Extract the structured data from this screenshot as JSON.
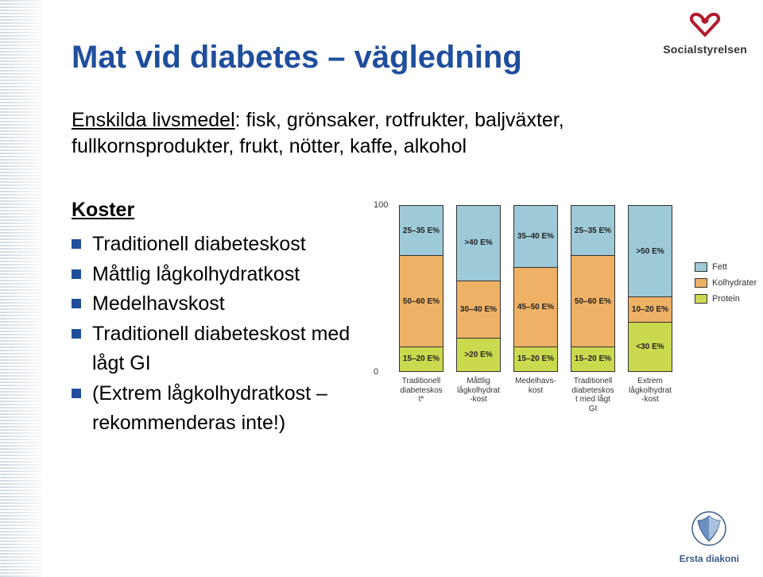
{
  "title": "Mat vid diabetes – vägledning",
  "intro": {
    "label": "Enskilda livsmedel",
    "text": ": fisk, grönsaker, rotfrukter, baljväxter, fullkornsprodukter, frukt, nötter, kaffe, alkohol"
  },
  "koster": {
    "heading": "Koster",
    "items": [
      "Traditionell diabeteskost",
      "Måttlig lågkolhydratkost",
      "Medelhavskost",
      "Traditionell diabeteskost med lågt GI",
      "(Extrem lågkolhydratkost – rekommenderas inte!)"
    ]
  },
  "logos": {
    "social": "Socialstyrelsen",
    "ersta": "Ersta diakoni"
  },
  "chart": {
    "ymax_label": "100",
    "ymin_label": "0",
    "colors": {
      "fat": "#9ec9d6",
      "carb": "#eeb165",
      "protein": "#cbd94f",
      "border": "#333333",
      "background": "#ffffff"
    },
    "legend": [
      {
        "key": "fat",
        "label": "Fett"
      },
      {
        "key": "carb",
        "label": "Kolhydrater"
      },
      {
        "key": "protein",
        "label": "Protein"
      }
    ],
    "bars": [
      {
        "label": "Traditionell diabeteskost*",
        "segments": [
          {
            "key": "fat",
            "pct": 30,
            "text": "25–35 E%"
          },
          {
            "key": "carb",
            "pct": 55,
            "text": "50–60 E%"
          },
          {
            "key": "protein",
            "pct": 15,
            "text": "15–20 E%"
          }
        ]
      },
      {
        "label": "Måttlig lågkolhydrat-kost",
        "segments": [
          {
            "key": "fat",
            "pct": 45,
            "text": ">40 E%"
          },
          {
            "key": "carb",
            "pct": 35,
            "text": "30–40 E%"
          },
          {
            "key": "protein",
            "pct": 20,
            "text": ">20 E%"
          }
        ]
      },
      {
        "label": "Medelhavs-kost",
        "segments": [
          {
            "key": "fat",
            "pct": 37,
            "text": "35–40 E%"
          },
          {
            "key": "carb",
            "pct": 48,
            "text": "45–50 E%"
          },
          {
            "key": "protein",
            "pct": 15,
            "text": "15–20 E%"
          }
        ]
      },
      {
        "label": "Traditionell diabeteskost med lågt GI",
        "segments": [
          {
            "key": "fat",
            "pct": 30,
            "text": "25–35 E%"
          },
          {
            "key": "carb",
            "pct": 55,
            "text": "50–60 E%"
          },
          {
            "key": "protein",
            "pct": 15,
            "text": "15–20 E%"
          }
        ]
      },
      {
        "label": "Extrem lågkolhydrat-kost",
        "segments": [
          {
            "key": "fat",
            "pct": 55,
            "text": ">50 E%"
          },
          {
            "key": "carb",
            "pct": 15,
            "text": "10–20 E%"
          },
          {
            "key": "protein",
            "pct": 30,
            "text": "<30 E%"
          }
        ]
      }
    ]
  }
}
